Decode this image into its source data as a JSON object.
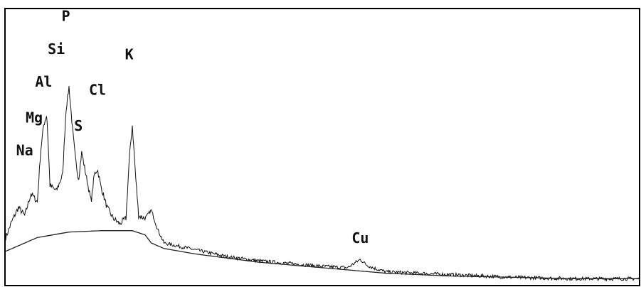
{
  "chart_data": {
    "type": "line",
    "title": "",
    "xlabel": "",
    "ylabel": "",
    "xlim": [
      0,
      10
    ],
    "ylim": [
      0,
      100
    ],
    "grid": false,
    "legend": "none",
    "colors": {
      "spectrum": "#111111",
      "background_curve": "#222222",
      "frame": "#000000"
    },
    "annotations": [
      {
        "id": "na",
        "text": "Na",
        "x": 0.3,
        "y": 47
      },
      {
        "id": "mg",
        "text": "Mg",
        "x": 0.45,
        "y": 59
      },
      {
        "id": "al",
        "text": "Al",
        "x": 0.6,
        "y": 72
      },
      {
        "id": "si",
        "text": "Si",
        "x": 0.8,
        "y": 84
      },
      {
        "id": "p",
        "text": "P",
        "x": 0.95,
        "y": 96
      },
      {
        "id": "s",
        "text": "S",
        "x": 1.15,
        "y": 56
      },
      {
        "id": "cl",
        "text": "Cl",
        "x": 1.45,
        "y": 69
      },
      {
        "id": "k",
        "text": "K",
        "x": 1.95,
        "y": 82
      },
      {
        "id": "cu",
        "text": "Cu",
        "x": 5.6,
        "y": 15
      }
    ],
    "series": [
      {
        "x": [
          0,
          0.1,
          0.2,
          0.3,
          0.4,
          0.5,
          0.55,
          0.6,
          0.65,
          0.7,
          0.8,
          0.9,
          0.95,
          1.0,
          1.05,
          1.1,
          1.15,
          1.2,
          1.25,
          1.3,
          1.35,
          1.4,
          1.45,
          1.5,
          1.6,
          1.7,
          1.8,
          1.9,
          1.95,
          2.0,
          2.05,
          2.1,
          2.2,
          2.3,
          2.4,
          2.5,
          3.0,
          3.5,
          4.0,
          4.5,
          5.0,
          5.4,
          5.6,
          5.7,
          5.8,
          6.0,
          6.5,
          7.0,
          7.5,
          8.0,
          8.5,
          9.0,
          9.5,
          10.0
        ],
        "values": [
          17,
          23,
          28,
          25,
          33,
          30,
          48,
          58,
          62,
          36,
          34,
          40,
          63,
          72,
          58,
          46,
          38,
          48,
          42,
          36,
          30,
          40,
          42,
          36,
          28,
          24,
          22,
          24,
          45,
          58,
          40,
          25,
          24,
          27,
          20,
          15,
          12.5,
          10,
          8.5,
          7.5,
          6.5,
          6,
          9,
          7,
          6,
          4.5,
          4,
          3.5,
          3,
          2.5,
          2.2,
          2,
          2,
          2
        ]
      },
      {
        "x": [
          0,
          0.5,
          1.0,
          1.5,
          2.0,
          2.2,
          2.3,
          2.5,
          3.0,
          4.0,
          5.0,
          6.0,
          7.0,
          8.0,
          9.0,
          10.0
        ],
        "values": [
          12,
          17,
          19,
          19.5,
          19.5,
          18,
          15,
          13,
          11,
          8,
          6,
          4,
          3,
          2.5,
          2,
          2
        ]
      }
    ]
  }
}
